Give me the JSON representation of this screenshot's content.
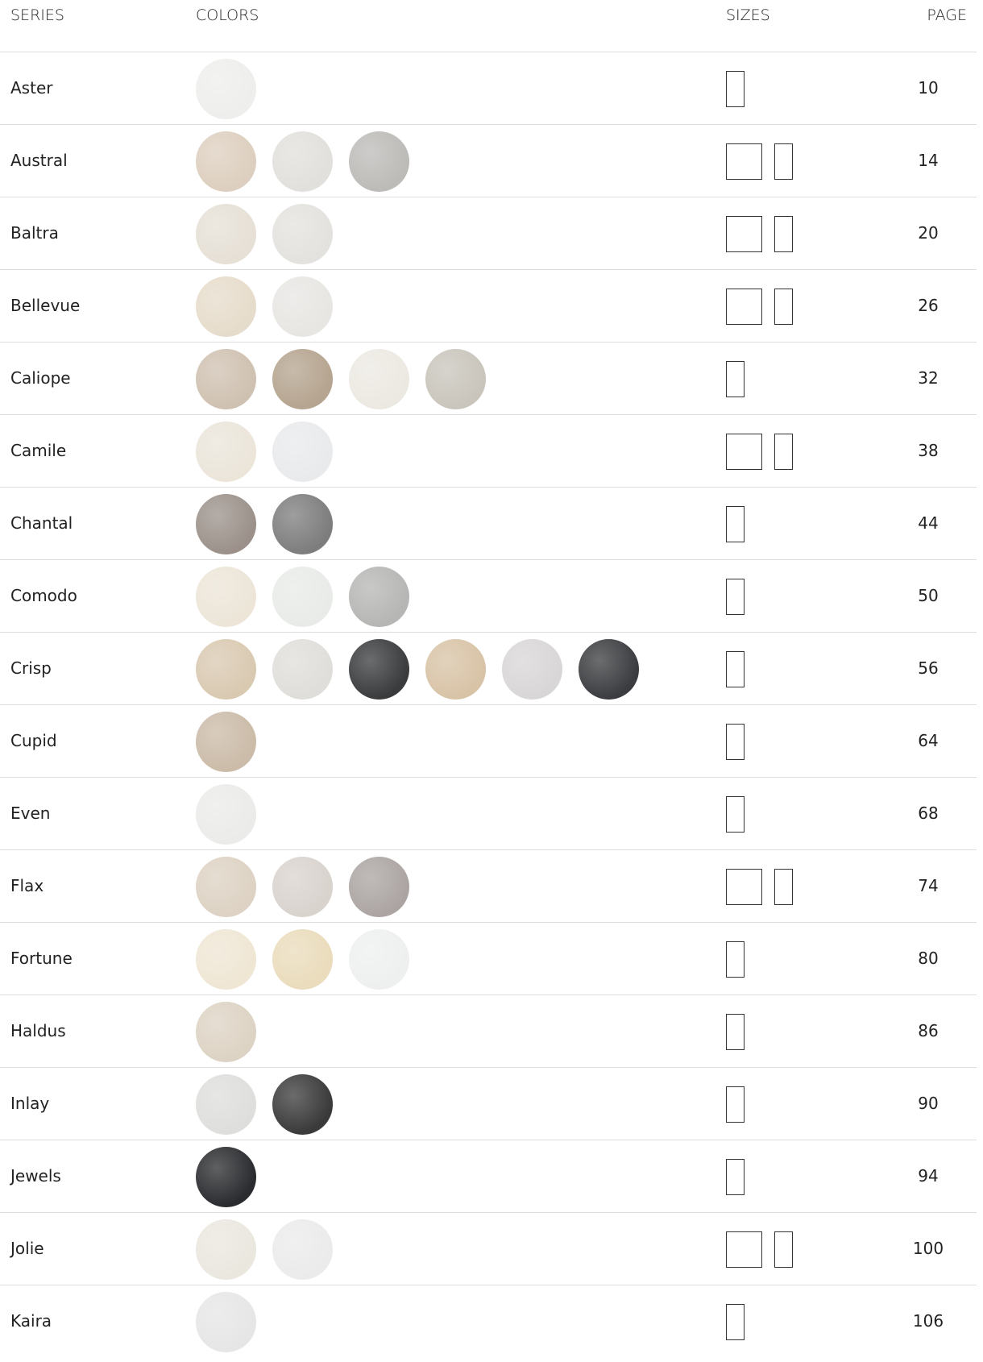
{
  "table": {
    "header": [
      "SERIES",
      "COLORS",
      "SIZES",
      "PAGE"
    ],
    "rows": [
      [
        "Aster",
        10
      ],
      [
        "Austral",
        14
      ],
      [
        "Baltra",
        20
      ],
      [
        "Bellevue",
        26
      ],
      [
        "Caliope",
        32
      ],
      [
        "Camile",
        38
      ],
      [
        "Chantal",
        44
      ],
      [
        "Comodo",
        50
      ],
      [
        "Crisp",
        56
      ],
      [
        "Cupid",
        64
      ],
      [
        "Even",
        68
      ],
      [
        "Flax",
        74
      ],
      [
        "Fortune",
        80
      ],
      [
        "Haldus",
        86
      ],
      [
        "Inlay",
        90
      ],
      [
        "Jewels",
        94
      ],
      [
        "Jolie",
        100
      ],
      [
        "Kaira",
        106
      ]
    ]
  }
}
